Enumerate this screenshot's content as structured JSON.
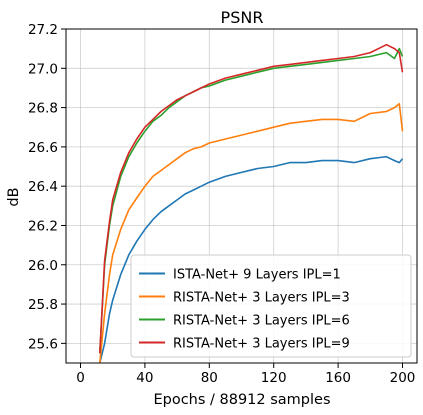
{
  "chart_data": {
    "type": "line",
    "title": "PSNR",
    "xlabel": "Epochs / 88912 samples",
    "ylabel": "dB",
    "xlim": [
      -9,
      209
    ],
    "ylim": [
      25.5,
      27.2
    ],
    "xticks": [
      0,
      40,
      80,
      120,
      160,
      200
    ],
    "xtick_labels": [
      "0",
      "40",
      "80",
      "120",
      "160",
      "200"
    ],
    "yticks": [
      25.6,
      25.8,
      26.0,
      26.2,
      26.4,
      26.6,
      26.8,
      27.0,
      27.2
    ],
    "ytick_labels": [
      "25.6",
      "25.8",
      "26.0",
      "26.2",
      "26.4",
      "26.6",
      "26.8",
      "27.0",
      "27.2"
    ],
    "grid": true,
    "legend_position": "lower-right",
    "x": [
      12,
      15,
      18,
      20,
      25,
      30,
      35,
      40,
      45,
      50,
      55,
      60,
      65,
      70,
      75,
      80,
      90,
      100,
      110,
      120,
      130,
      140,
      150,
      160,
      170,
      180,
      190,
      195,
      198,
      200
    ],
    "series": [
      {
        "name": "ISTA-Net+ 9 Layers IPL=1",
        "color": "#1f77b4",
        "values": [
          25.5,
          25.6,
          25.75,
          25.82,
          25.95,
          26.05,
          26.12,
          26.18,
          26.23,
          26.27,
          26.3,
          26.33,
          26.36,
          26.38,
          26.4,
          26.42,
          26.45,
          26.47,
          26.49,
          26.5,
          26.52,
          26.52,
          26.53,
          26.53,
          26.52,
          26.54,
          26.55,
          26.53,
          26.52,
          26.54
        ]
      },
      {
        "name": "RISTA-Net+ 3 Layers IPL=3",
        "color": "#ff7f0e",
        "values": [
          25.5,
          25.75,
          25.95,
          26.05,
          26.18,
          26.28,
          26.34,
          26.4,
          26.45,
          26.48,
          26.51,
          26.54,
          26.57,
          26.59,
          26.6,
          26.62,
          26.64,
          26.66,
          26.68,
          26.7,
          26.72,
          26.73,
          26.74,
          26.74,
          26.73,
          26.77,
          26.78,
          26.8,
          26.82,
          26.68
        ]
      },
      {
        "name": "RISTA-Net+ 3 Layers IPL=6",
        "color": "#2ca02c",
        "values": [
          25.55,
          26.0,
          26.2,
          26.3,
          26.45,
          26.55,
          26.62,
          26.68,
          26.73,
          26.76,
          26.8,
          26.83,
          26.86,
          26.88,
          26.9,
          26.91,
          26.94,
          26.96,
          26.98,
          27.0,
          27.01,
          27.02,
          27.03,
          27.04,
          27.05,
          27.06,
          27.08,
          27.05,
          27.1,
          27.06
        ]
      },
      {
        "name": "RISTA-Net+ 3 Layers IPL=9",
        "color": "#d62728",
        "values": [
          25.55,
          26.02,
          26.22,
          26.33,
          26.47,
          26.57,
          26.64,
          26.7,
          26.74,
          26.78,
          26.81,
          26.84,
          26.86,
          26.88,
          26.9,
          26.92,
          26.95,
          26.97,
          26.99,
          27.01,
          27.02,
          27.03,
          27.04,
          27.05,
          27.06,
          27.08,
          27.12,
          27.1,
          27.08,
          26.98
        ]
      }
    ]
  }
}
